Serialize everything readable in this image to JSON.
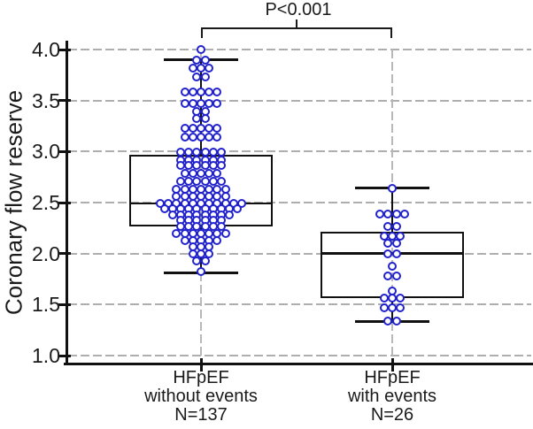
{
  "annotation": {
    "p_label": "P<0.001"
  },
  "y_axis": {
    "title": "Coronary flow reserve"
  },
  "x_axis": {
    "categories": [
      {
        "lines": [
          "HFpEF",
          "without events",
          "N=137"
        ]
      },
      {
        "lines": [
          "HFpEF",
          "with events",
          "N=26"
        ]
      }
    ]
  },
  "chart_data": {
    "type": "box-scatter",
    "title": "",
    "xlabel": "",
    "ylabel": "Coronary flow reserve",
    "ylim": [
      1.0,
      4.15
    ],
    "yticks": [
      4.0,
      3.5,
      3.0,
      2.5,
      2.0,
      1.5,
      1.0
    ],
    "ytick_labels": [
      "4.0",
      "3.5",
      "3.0",
      "2.5",
      "2.0",
      "1.5",
      "1.0"
    ],
    "grid": true,
    "gridline_color": "#aeaeae",
    "point_color": "#2222cc",
    "significance": {
      "label": "P<0.001",
      "between_groups": [
        0,
        1
      ]
    },
    "categories": [
      "HFpEF without events N=137",
      "HFpEF with events N=26"
    ],
    "points_format": "[value, count_of_points_in_horizontal_row]",
    "series": [
      {
        "name": "HFpEF without events",
        "n": 137,
        "label_lines": [
          "HFpEF",
          "without events",
          "N=137"
        ],
        "box": {
          "median": 2.49,
          "q1": 2.27,
          "q3": 2.97,
          "whisker_low": 1.81,
          "whisker_high": 3.9
        },
        "points": [
          [
            4.0,
            1
          ],
          [
            3.9,
            2
          ],
          [
            3.82,
            3
          ],
          [
            3.73,
            2
          ],
          [
            3.58,
            5
          ],
          [
            3.47,
            5
          ],
          [
            3.39,
            2
          ],
          [
            3.32,
            2
          ],
          [
            3.23,
            5
          ],
          [
            3.14,
            5
          ],
          [
            2.99,
            6
          ],
          [
            2.92,
            6
          ],
          [
            2.86,
            6
          ],
          [
            2.79,
            5
          ],
          [
            2.71,
            6
          ],
          [
            2.63,
            7
          ],
          [
            2.56,
            7
          ],
          [
            2.49,
            11
          ],
          [
            2.44,
            10
          ],
          [
            2.38,
            8
          ],
          [
            2.33,
            6
          ],
          [
            2.27,
            6
          ],
          [
            2.2,
            7
          ],
          [
            2.13,
            5
          ],
          [
            2.07,
            3
          ],
          [
            2.0,
            3
          ],
          [
            1.93,
            2
          ],
          [
            1.82,
            1
          ]
        ]
      },
      {
        "name": "HFpEF with events",
        "n": 26,
        "label_lines": [
          "HFpEF",
          "with events",
          "N=26"
        ],
        "box": {
          "median": 2.0,
          "q1": 1.56,
          "q3": 2.21,
          "whisker_low": 1.33,
          "whisker_high": 2.64
        },
        "points": [
          [
            2.64,
            1
          ],
          [
            2.39,
            4
          ],
          [
            2.27,
            2
          ],
          [
            2.17,
            3
          ],
          [
            2.1,
            2
          ],
          [
            2.0,
            2
          ],
          [
            1.88,
            1
          ],
          [
            1.78,
            2
          ],
          [
            1.63,
            1
          ],
          [
            1.56,
            3
          ],
          [
            1.47,
            3
          ],
          [
            1.34,
            2
          ]
        ]
      }
    ]
  }
}
